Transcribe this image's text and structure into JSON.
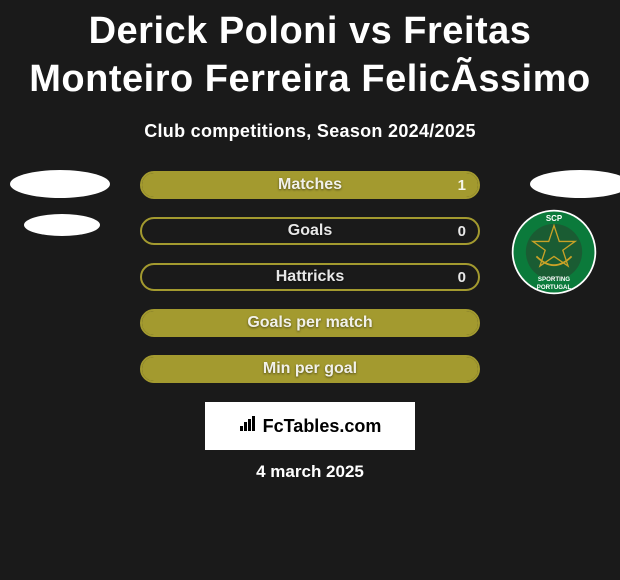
{
  "title": "Derick Poloni vs Freitas Monteiro Ferreira FelicÃssimo",
  "subtitle": "Club competitions, Season 2024/2025",
  "colors": {
    "background": "#1a1a1a",
    "bar_border": "#a39a2f",
    "bar_fill": "#a39a2f",
    "text": "#ffffff",
    "badge_ring": "#0b7a3b",
    "badge_inner": "#1a5c33",
    "badge_gold": "#c9a227"
  },
  "stats": [
    {
      "label": "Matches",
      "value": "1",
      "fill_pct": 100
    },
    {
      "label": "Goals",
      "value": "0",
      "fill_pct": 0
    },
    {
      "label": "Hattricks",
      "value": "0",
      "fill_pct": 0
    },
    {
      "label": "Goals per match",
      "value": "",
      "fill_pct": 100
    },
    {
      "label": "Min per goal",
      "value": "",
      "fill_pct": 100
    }
  ],
  "footer": {
    "site": "FcTables.com"
  },
  "date": "4 march 2025",
  "badge": {
    "top_text": "SCP",
    "mid_text": "SPORTING",
    "bottom_text": "PORTUGAL"
  }
}
